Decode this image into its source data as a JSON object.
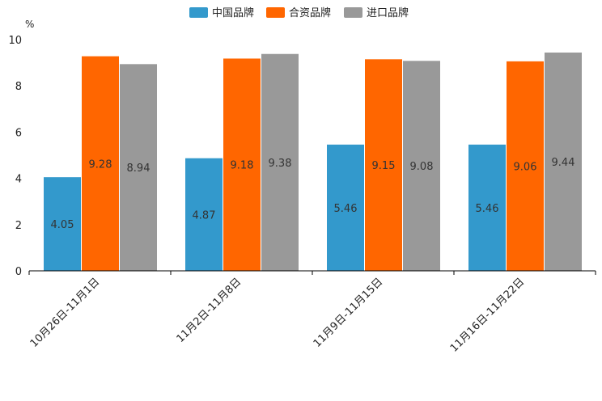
{
  "chart_data": {
    "type": "bar",
    "unit_label": "%",
    "categories": [
      "10月26日-11月1日",
      "11月2日-11月8日",
      "11月9日-11月15日",
      "11月16日-11月22日"
    ],
    "series": [
      {
        "name": "中国品牌",
        "color": "#3399cc",
        "values": [
          4.05,
          4.87,
          5.46,
          5.46
        ],
        "labels": [
          "4.05",
          "4.87",
          "5.46",
          "5.46"
        ]
      },
      {
        "name": "合资品牌",
        "color": "#ff6600",
        "values": [
          9.28,
          9.18,
          9.15,
          9.06
        ],
        "labels": [
          "9.28",
          "9.18",
          "9.15",
          "9.06"
        ]
      },
      {
        "name": "进口品牌",
        "color": "#999999",
        "values": [
          8.94,
          9.38,
          9.08,
          9.44
        ],
        "labels": [
          "8.94",
          "9.38",
          "9.08",
          "9.44"
        ]
      }
    ],
    "ylim": [
      0,
      10
    ],
    "yticks": [
      "0",
      "2",
      "4",
      "6",
      "8",
      "10"
    ],
    "legend_position": "top-center",
    "grid": false
  }
}
